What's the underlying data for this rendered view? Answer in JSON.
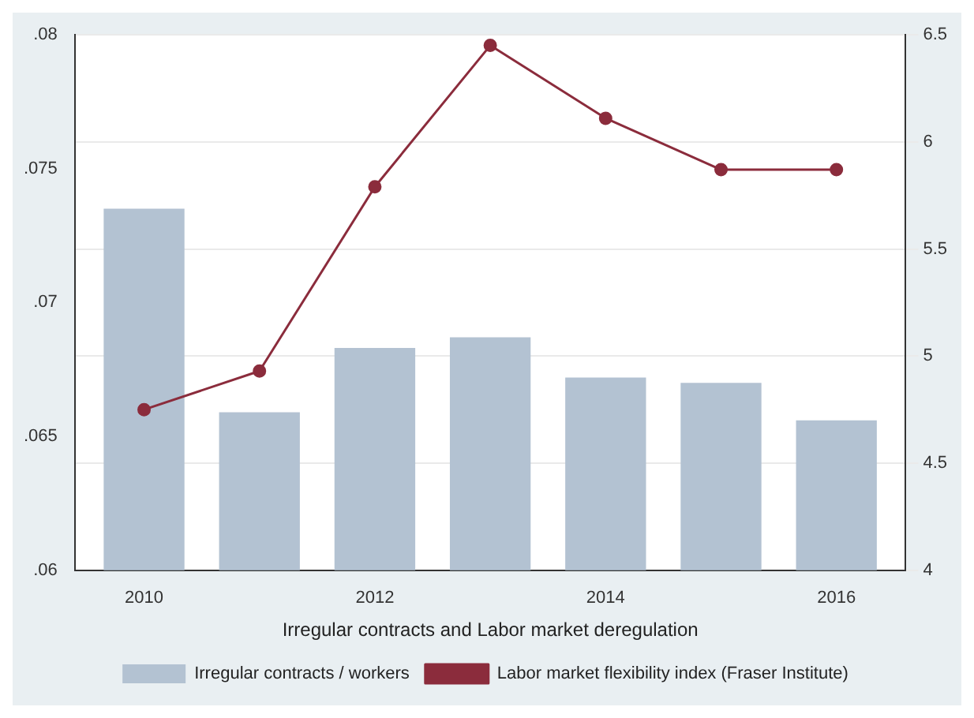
{
  "chart_data": {
    "type": "bar",
    "xlabel": "Irregular contracts and Labor market deregulation",
    "x": [
      2010,
      2011,
      2012,
      2013,
      2014,
      2015,
      2016
    ],
    "xlim": [
      2009.4,
      2016.6
    ],
    "xticks": [
      2010,
      2012,
      2014,
      2016
    ],
    "ylim": [
      0.06,
      0.08
    ],
    "yticks": [
      {
        "value": 0.06,
        "label": ".06"
      },
      {
        "value": 0.065,
        "label": ".065"
      },
      {
        "value": 0.07,
        "label": ".07"
      },
      {
        "value": 0.075,
        "label": ".075"
      },
      {
        "value": 0.08,
        "label": ".08"
      }
    ],
    "y2lim": [
      4,
      6.5
    ],
    "y2ticks": [
      4,
      4.5,
      5,
      5.5,
      6,
      6.5
    ],
    "grid": true,
    "legend": "bottom",
    "marker": "circle",
    "series": [
      {
        "name": "Irregular contracts / workers",
        "color": "#b3c2d2",
        "values": [
          0.0735,
          0.0659,
          0.0683,
          0.0687,
          0.0672,
          0.067,
          0.0656
        ]
      },
      {
        "name": "Labor market flexibility index (Fraser Institute)",
        "type": "line",
        "axis": "y2",
        "color": "#8b2c3c",
        "values": [
          4.75,
          4.93,
          5.79,
          6.45,
          6.11,
          5.87,
          5.87
        ]
      }
    ]
  }
}
